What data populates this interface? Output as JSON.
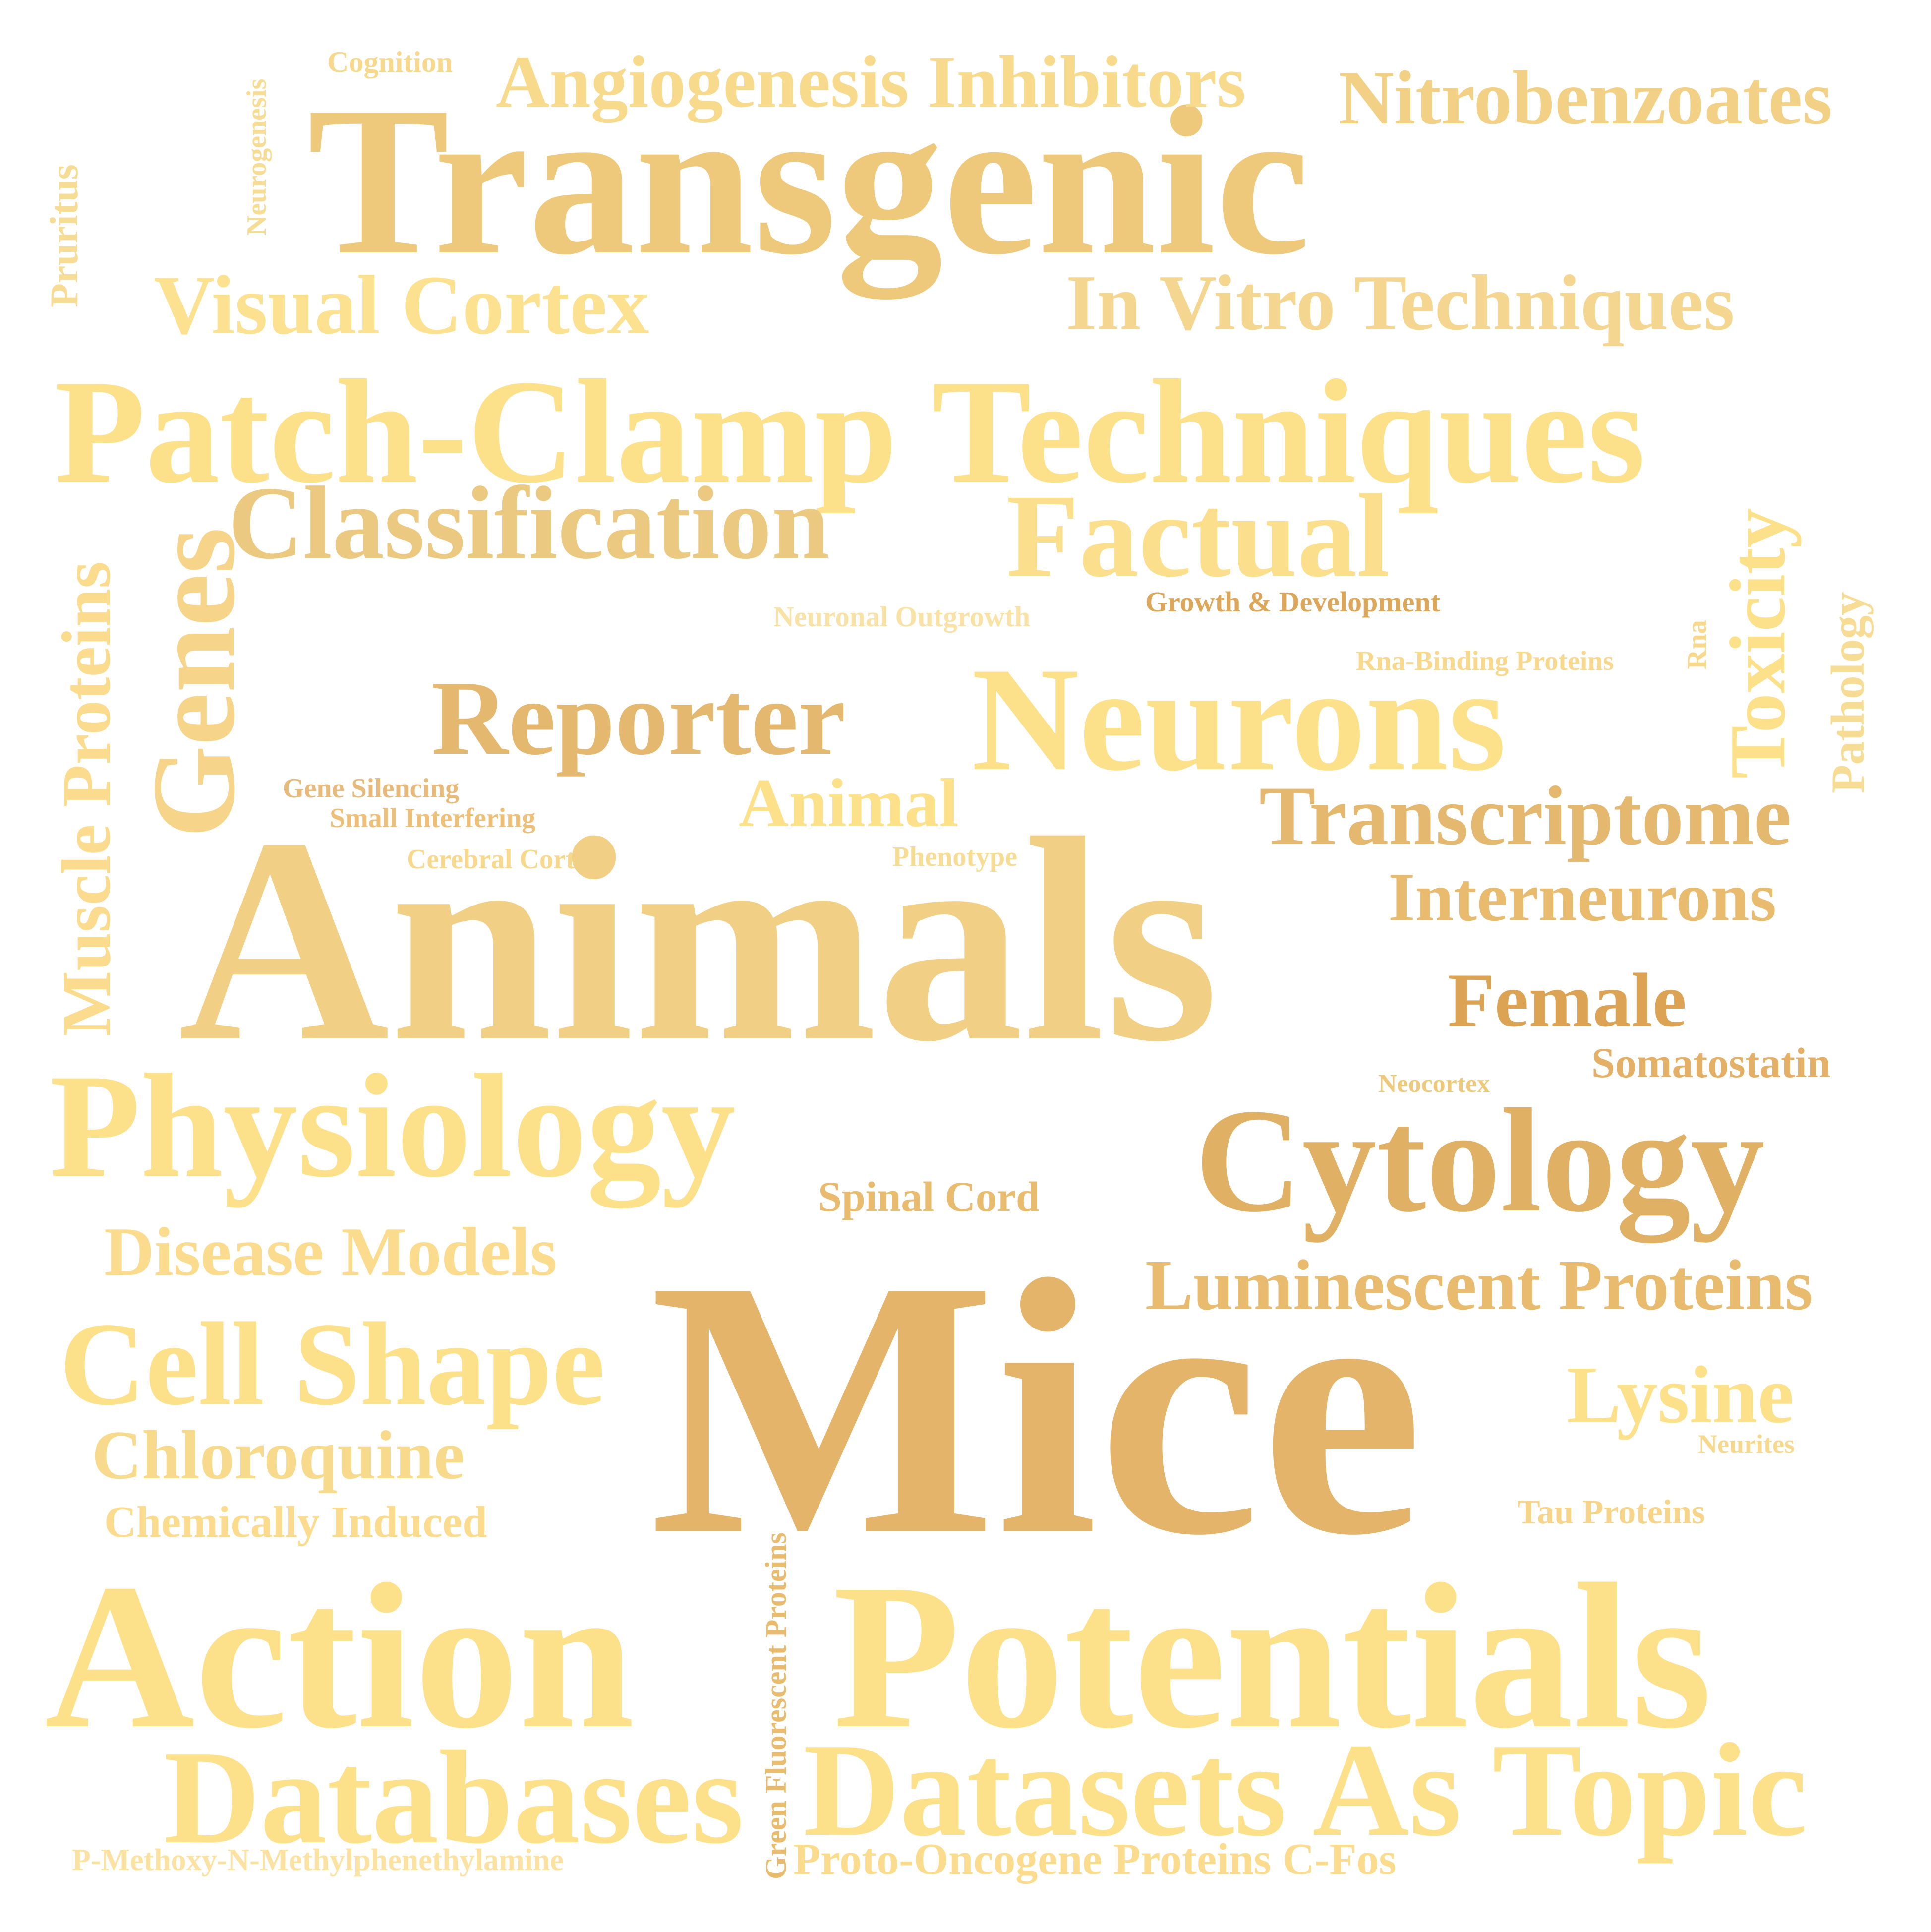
{
  "words": [
    {
      "text": "Transgenic",
      "color": "#efc97b"
    },
    {
      "text": "Nitrobenzoates",
      "color": "#f2d186"
    },
    {
      "text": "Angiogenesis Inhibitors",
      "color": "#f7da8c"
    },
    {
      "text": "Cognition",
      "color": "#f7d88c"
    },
    {
      "text": "Neurogenesis",
      "color": "#f7dc95"
    },
    {
      "text": "Pruritus",
      "color": "#f7dc95"
    },
    {
      "text": "Visual Cortex",
      "color": "#fbe190"
    },
    {
      "text": "In Vitro Techniques",
      "color": "#f5d690"
    },
    {
      "text": "Patch-Clamp Techniques",
      "color": "#fde18a"
    },
    {
      "text": "Classification",
      "color": "#ecc981"
    },
    {
      "text": "Factual",
      "color": "#fbdf8c"
    },
    {
      "text": "Genes",
      "color": "#f6d48a"
    },
    {
      "text": "Muscle Proteins",
      "color": "#fbdc8f"
    },
    {
      "text": "Toxicity",
      "color": "#fde18a"
    },
    {
      "text": "Pathology",
      "color": "#f7dc95"
    },
    {
      "text": "Rna",
      "color": "#f7d88c"
    },
    {
      "text": "Rna-Binding Proteins",
      "color": "#f7d88c"
    },
    {
      "text": "Growth & Development",
      "color": "#dca75b"
    },
    {
      "text": "Neuronal Outgrowth",
      "color": "#f9e2a6"
    },
    {
      "text": "Reporter",
      "color": "#e5b870"
    },
    {
      "text": "Neurons",
      "color": "#fde18a"
    },
    {
      "text": "Gene Silencing",
      "color": "#e7b97a"
    },
    {
      "text": "Small Interfering",
      "color": "#eebf78"
    },
    {
      "text": "Animal",
      "color": "#fde18a"
    },
    {
      "text": "Transcriptome",
      "color": "#e5b870"
    },
    {
      "text": "Cerebral Cortex",
      "color": "#f7d88c"
    },
    {
      "text": "Phenotype",
      "color": "#f7dc95"
    },
    {
      "text": "Animals",
      "color": "#f1cf84"
    },
    {
      "text": "Interneurons",
      "color": "#e8bb6f"
    },
    {
      "text": "Female",
      "color": "#dca355"
    },
    {
      "text": "Somatostatin",
      "color": "#e4b067"
    },
    {
      "text": "Neocortex",
      "color": "#efc97b"
    },
    {
      "text": "Physiology",
      "color": "#fde18a"
    },
    {
      "text": "Cytology",
      "color": "#e0b065"
    },
    {
      "text": "Spinal Cord",
      "color": "#e8bb6f"
    },
    {
      "text": "Disease Models",
      "color": "#fbdc8f"
    },
    {
      "text": "Luminescent Proteins",
      "color": "#e8bb6f"
    },
    {
      "text": "Cell Shape",
      "color": "#fde18a"
    },
    {
      "text": "Mice",
      "color": "#e3b46a"
    },
    {
      "text": "Lysine",
      "color": "#fde18a"
    },
    {
      "text": "Neurites",
      "color": "#f7d88c"
    },
    {
      "text": "Chloroquine",
      "color": "#f7da8c"
    },
    {
      "text": "Chemically Induced",
      "color": "#fbdc8f"
    },
    {
      "text": "Tau Proteins",
      "color": "#f6d48a"
    },
    {
      "text": "Green Fluorescent Proteins",
      "color": "#e8bb6f"
    },
    {
      "text": "Action",
      "color": "#fde18a"
    },
    {
      "text": "Potentials",
      "color": "#fde18a"
    },
    {
      "text": "Databases",
      "color": "#fde18a"
    },
    {
      "text": "Datasets As Topic",
      "color": "#fde18a"
    },
    {
      "text": "P-Methoxy-N-Methylphenethylamine",
      "color": "#fbe1a2"
    },
    {
      "text": "Proto-Oncogene Proteins C-Fos",
      "color": "#fbdc8f"
    }
  ]
}
